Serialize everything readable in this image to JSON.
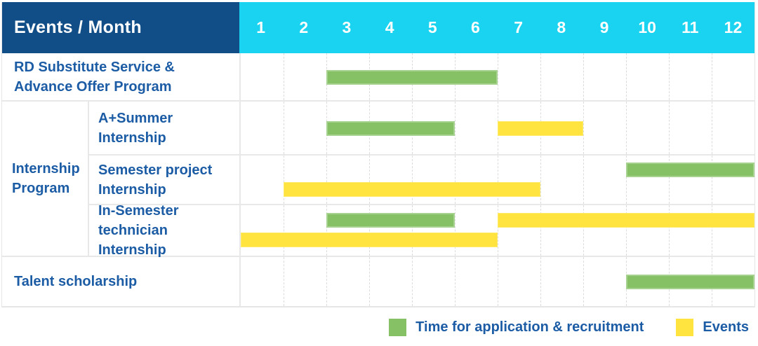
{
  "header": {
    "title": "Events / Month",
    "months": [
      "1",
      "2",
      "3",
      "4",
      "5",
      "6",
      "7",
      "8",
      "9",
      "10",
      "11",
      "12"
    ]
  },
  "colors": {
    "header_bg": "#114e87",
    "months_bg": "#1ad3f0",
    "application_green": "#87c166",
    "events_yellow": "#ffe440",
    "label_blue": "#1c5ca5",
    "grid_line": "#e8e8e8"
  },
  "chart_data": {
    "type": "gantt",
    "x_axis": {
      "label": "Month",
      "ticks": [
        1,
        2,
        3,
        4,
        5,
        6,
        7,
        8,
        9,
        10,
        11,
        12
      ],
      "range": [
        1,
        12
      ]
    },
    "grid": "dashed vertical month lines, solid row lines",
    "rows": [
      {
        "sub": false,
        "label": "RD Substitute Service & Advance Offer Program",
        "label_lines": [
          "RD Substitute Service &",
          "Advance Offer Program"
        ],
        "lines": 1,
        "bars": [
          {
            "series": "Time for application & recruitment",
            "color": "green",
            "start_month": 3,
            "end_month": 6,
            "line": 0
          }
        ]
      },
      {
        "sub": true,
        "group": "Internship Program",
        "group_lines": [
          "Internship",
          "Program"
        ],
        "label": "A+Summer Internship",
        "label_lines": [
          "A+Summer",
          "Internship"
        ],
        "lines": 1,
        "bars": [
          {
            "series": "Time for application & recruitment",
            "color": "green",
            "start_month": 3,
            "end_month": 5,
            "line": 0
          },
          {
            "series": "Events",
            "color": "yellow",
            "start_month": 7,
            "end_month": 8,
            "line": 0
          }
        ]
      },
      {
        "sub": true,
        "label": "Semester project Internship",
        "label_lines": [
          "Semester project",
          "Internship"
        ],
        "lines": 2,
        "bars": [
          {
            "series": "Time for application & recruitment",
            "color": "green",
            "start_month": 10,
            "end_month": 12,
            "line": 0
          },
          {
            "series": "Events",
            "color": "yellow",
            "start_month": 2,
            "end_month": 7,
            "line": 1
          }
        ]
      },
      {
        "sub": true,
        "label": "In-Semester technician Internship",
        "label_lines": [
          "In-Semester",
          "technician Internship"
        ],
        "lines": 2,
        "bars": [
          {
            "series": "Time for application & recruitment",
            "color": "green",
            "start_month": 3,
            "end_month": 5,
            "line": 0
          },
          {
            "series": "Events",
            "color": "yellow",
            "start_month": 7,
            "end_month": 12,
            "line": 0
          },
          {
            "series": "Events",
            "color": "yellow",
            "start_month": 1,
            "end_month": 6,
            "line": 1
          }
        ]
      },
      {
        "sub": false,
        "label": "Talent scholarship",
        "label_lines": [
          "Talent scholarship"
        ],
        "lines": 1,
        "bars": [
          {
            "series": "Time for application & recruitment",
            "color": "green",
            "start_month": 10,
            "end_month": 12,
            "line": 0
          }
        ]
      }
    ]
  },
  "legend": {
    "items": [
      {
        "color": "green",
        "swatch_icon": "green-square-icon",
        "label": "Time for application & recruitment"
      },
      {
        "color": "yellow",
        "swatch_icon": "yellow-square-icon",
        "label": "Events"
      }
    ]
  }
}
